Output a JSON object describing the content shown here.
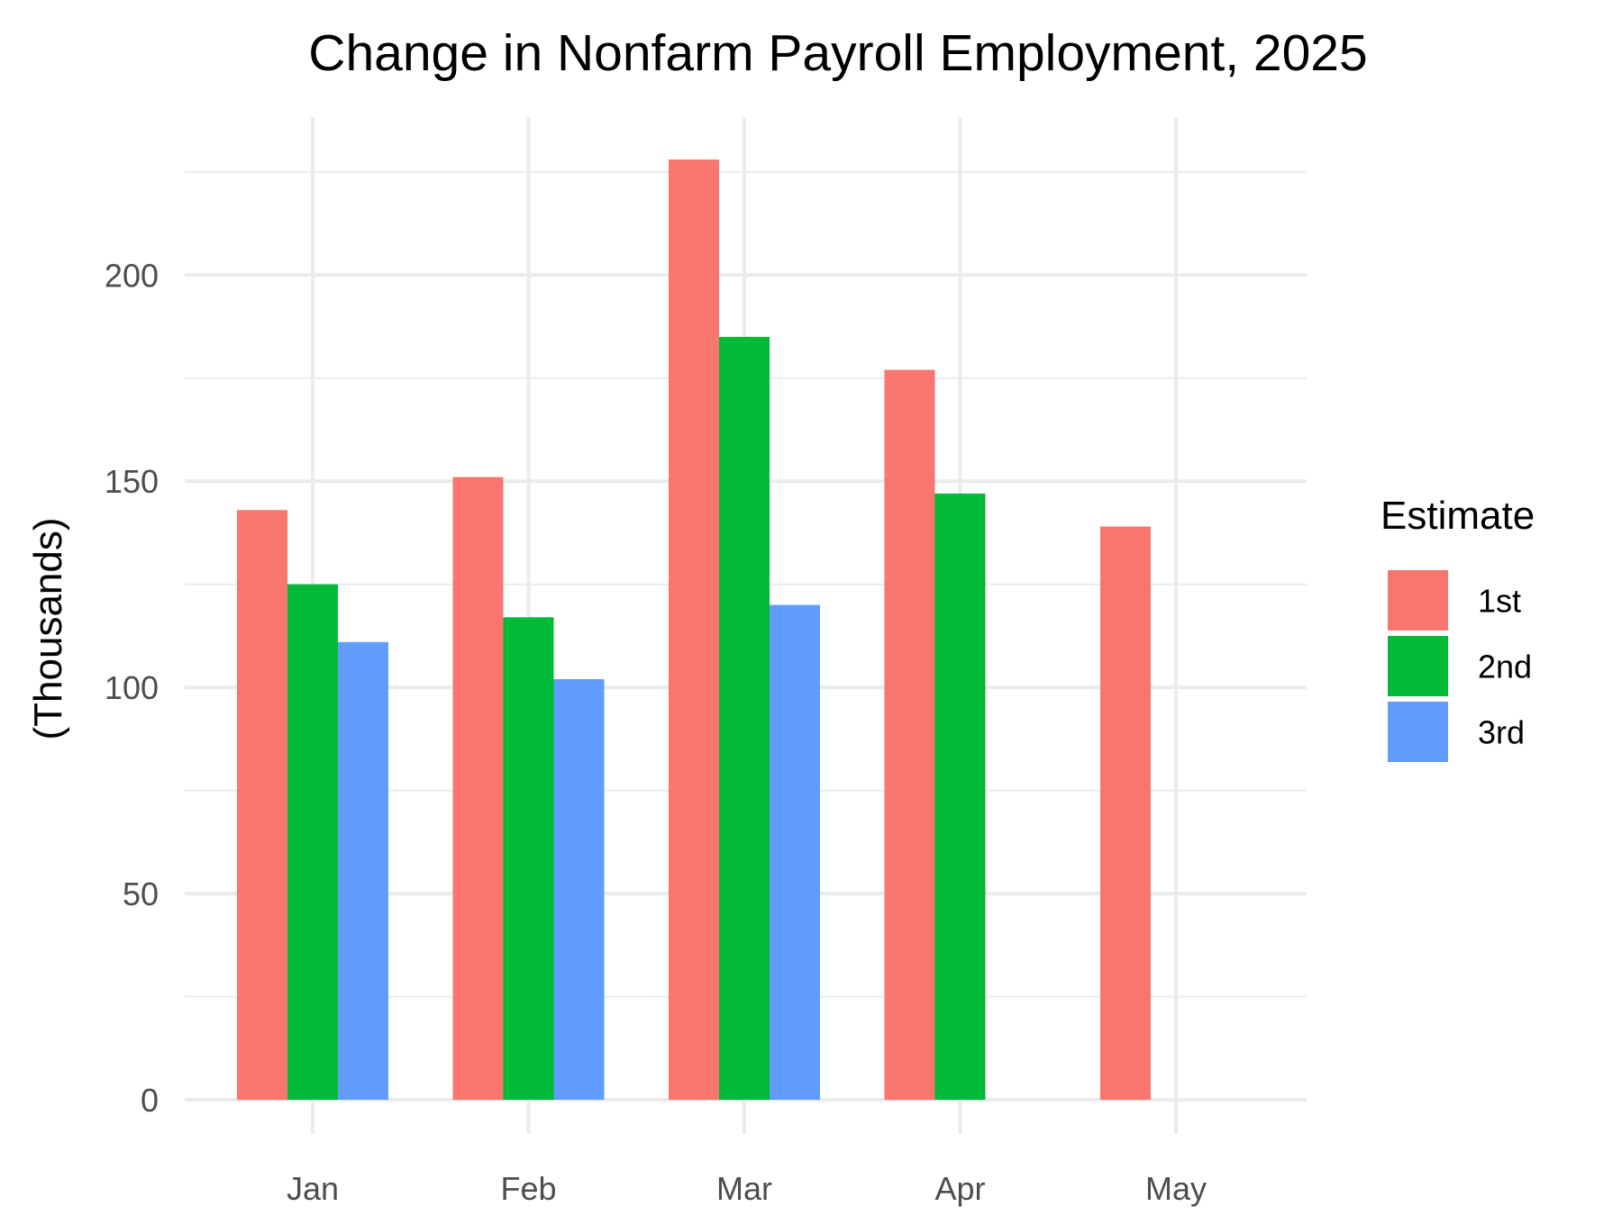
{
  "chart_data": {
    "type": "bar",
    "title": "Change in Nonfarm Payroll Employment, 2025",
    "xlabel": "",
    "ylabel": "(Thousands)",
    "categories": [
      "Jan",
      "Feb",
      "Mar",
      "Apr",
      "May"
    ],
    "series": [
      {
        "name": "1st",
        "color": "#F8766D",
        "values": [
          143,
          151,
          228,
          177,
          139
        ]
      },
      {
        "name": "2nd",
        "color": "#00BA38",
        "values": [
          125,
          117,
          185,
          147,
          null
        ]
      },
      {
        "name": "3rd",
        "color": "#619CFF",
        "values": [
          111,
          102,
          120,
          null,
          null
        ]
      }
    ],
    "ylim": [
      0,
      230
    ],
    "yticks": [
      0,
      50,
      100,
      150,
      200
    ],
    "grid": true,
    "legend": {
      "title": "Estimate",
      "position": "right"
    }
  }
}
